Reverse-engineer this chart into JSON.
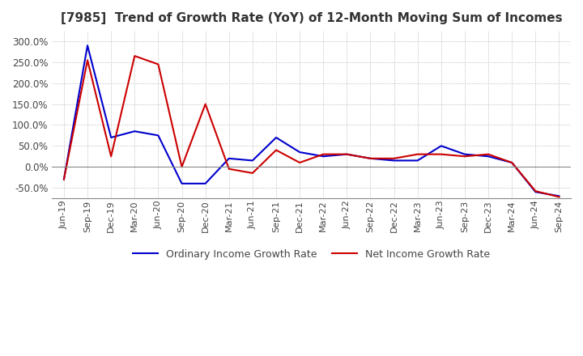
{
  "title": "[7985]  Trend of Growth Rate (YoY) of 12-Month Moving Sum of Incomes",
  "title_fontsize": 11,
  "ylim": [
    -75,
    325
  ],
  "yticks": [
    -50,
    0,
    50,
    100,
    150,
    200,
    250,
    300
  ],
  "background_color": "#ffffff",
  "grid_color": "#aaaaaa",
  "ordinary_color": "#0000cc",
  "net_color": "#cc0000",
  "legend_ordinary": "Ordinary Income Growth Rate",
  "legend_net": "Net Income Growth Rate",
  "dates": [
    "Jun-19",
    "Sep-19",
    "Dec-19",
    "Mar-20",
    "Jun-20",
    "Sep-20",
    "Dec-20",
    "Mar-21",
    "Jun-21",
    "Sep-21",
    "Dec-21",
    "Mar-22",
    "Jun-22",
    "Sep-22",
    "Dec-22",
    "Mar-23",
    "Jun-23",
    "Sep-23",
    "Dec-23",
    "Mar-24",
    "Jun-24",
    "Sep-24"
  ],
  "ordinary_values": [
    -30.0,
    290.0,
    70.0,
    85.0,
    75.0,
    -40.0,
    -40.0,
    20.0,
    15.0,
    70.0,
    35.0,
    25.0,
    30.0,
    20.0,
    15.0,
    15.0,
    50.0,
    30.0,
    25.0,
    10.0,
    -60.0,
    -70.0
  ],
  "net_values": [
    -30.0,
    255.0,
    25.0,
    265.0,
    245.0,
    0.0,
    150.0,
    -5.0,
    -15.0,
    40.0,
    10.0,
    30.0,
    30.0,
    20.0,
    20.0,
    30.0,
    30.0,
    25.0,
    30.0,
    10.0,
    -58.0,
    -72.0
  ]
}
